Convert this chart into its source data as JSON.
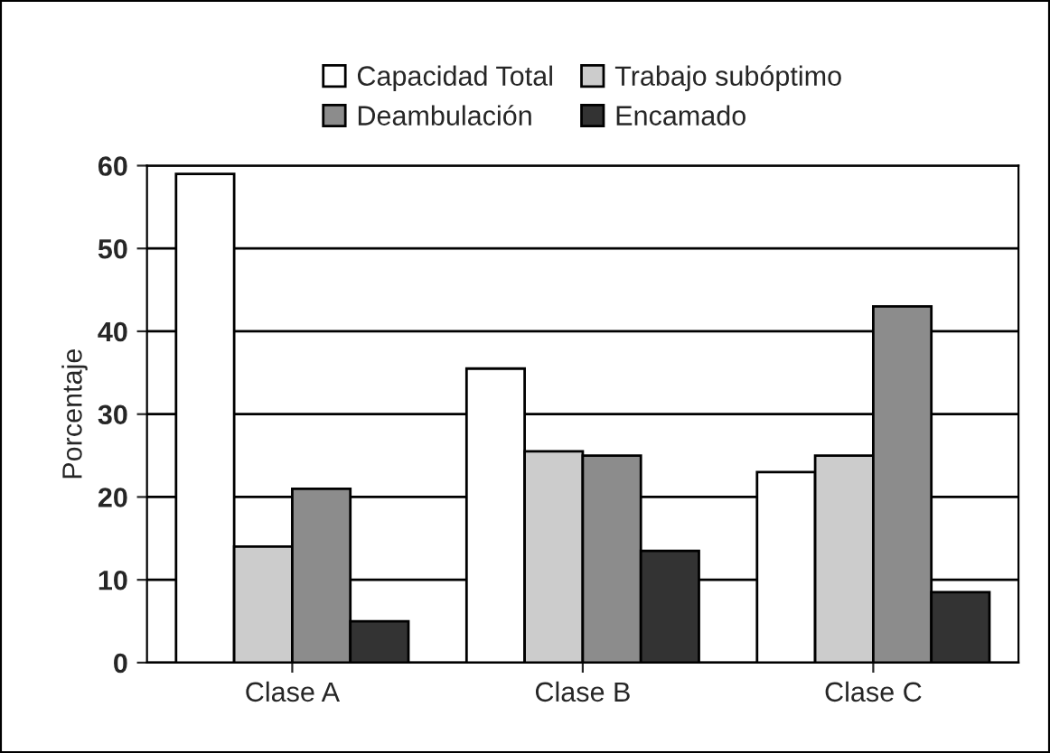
{
  "chart_data": {
    "type": "bar",
    "ylabel": "Porcentaje",
    "categories": [
      "Clase A",
      "Clase B",
      "Clase C"
    ],
    "series": [
      {
        "name": "Capacidad Total",
        "color": "#ffffff",
        "values": [
          59,
          35.5,
          23
        ]
      },
      {
        "name": "Trabajo subóptimo",
        "color": "#cccccc",
        "values": [
          14,
          25.5,
          25
        ]
      },
      {
        "name": "Deambulación",
        "color": "#8c8c8c",
        "values": [
          21,
          25,
          43
        ]
      },
      {
        "name": "Encamado",
        "color": "#333333",
        "values": [
          5,
          13.5,
          8.5
        ]
      }
    ],
    "ylim": [
      0,
      60
    ],
    "yticks": [
      0,
      10,
      20,
      30,
      40,
      50,
      60
    ],
    "grid": "y",
    "legend": "top"
  }
}
